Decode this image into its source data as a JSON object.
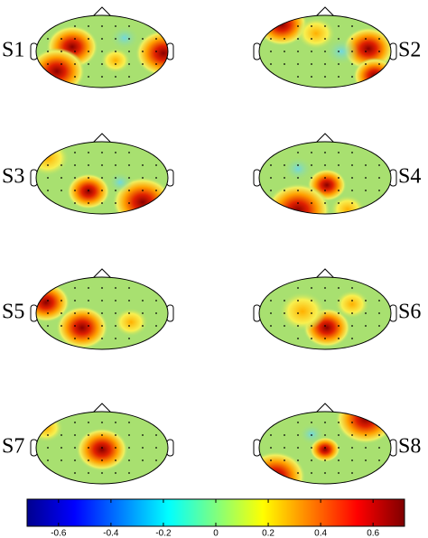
{
  "maps": [
    {
      "label": "S1"
    },
    {
      "label": "S2"
    },
    {
      "label": "S3"
    },
    {
      "label": "S4"
    },
    {
      "label": "S5"
    },
    {
      "label": "S6"
    },
    {
      "label": "S7"
    },
    {
      "label": "S8"
    }
  ],
  "colorbar": {
    "lim": [
      -0.72,
      0.72
    ],
    "ticks": [
      -0.6,
      -0.4,
      -0.2,
      0,
      0.2,
      0.4,
      0.6
    ]
  }
}
